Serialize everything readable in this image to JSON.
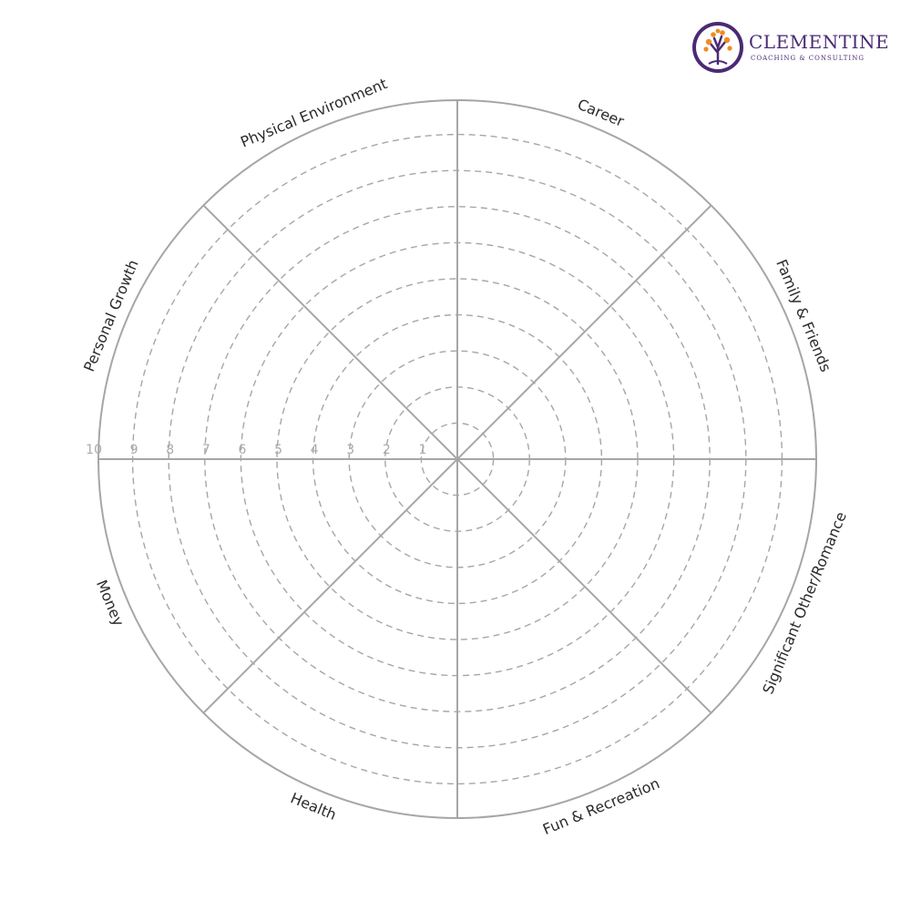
{
  "brand": {
    "name": "CLEMENTINE",
    "tagline": "COACHING & CONSULTING",
    "color": "#4a2a74",
    "accent": "#f08a24",
    "icon": "tree-icon"
  },
  "wheel": {
    "categories": [
      "Career",
      "Family & Friends",
      "Significant  Other/Romance",
      "Fun & Recreation",
      "Health",
      "Money",
      "Personal Growth",
      "Physical Environment"
    ],
    "scale": [
      "1",
      "2",
      "3",
      "4",
      "5",
      "6",
      "7",
      "8",
      "9",
      "10"
    ],
    "line_color": "#a6a6a6",
    "label_color": "#2b2b2b",
    "scale_color": "#aaaaaa"
  }
}
